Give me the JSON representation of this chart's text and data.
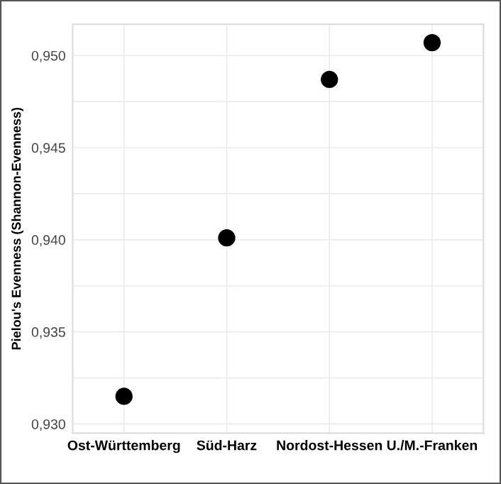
{
  "chart_data": {
    "type": "scatter",
    "ylabel": "Pielou's Evenness (Shannon-Evenness)",
    "categories": [
      "Ost-Württemberg",
      "Süd-Harz",
      "Nordost-Hessen",
      "U./M.-Franken"
    ],
    "values": [
      0.9315,
      0.9401,
      0.9487,
      0.9507
    ],
    "color": "#000000",
    "marker": "circle",
    "ylim": [
      0.9295,
      0.9517
    ],
    "yticks": [
      {
        "value": 0.93,
        "label": "0,930"
      },
      {
        "value": 0.935,
        "label": "0,935"
      },
      {
        "value": 0.94,
        "label": "0,940"
      },
      {
        "value": 0.945,
        "label": "0,945"
      },
      {
        "value": 0.95,
        "label": "0,950"
      }
    ],
    "grid": true
  }
}
